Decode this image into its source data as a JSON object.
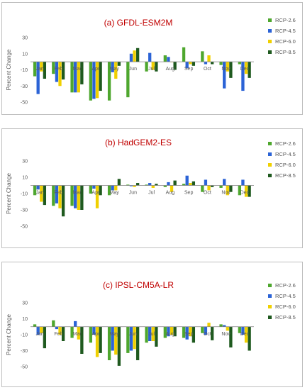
{
  "colors": [
    "#4ea72e",
    "#2b63d6",
    "#f0d000",
    "#1f5a1f"
  ],
  "chart_data": [
    {
      "type": "bar",
      "title": "(a) GFDL-ESM2M",
      "ylabel": "Percent Change",
      "ylim": [
        -50,
        30
      ],
      "yticks": [
        30,
        10,
        -10,
        -30,
        -50
      ],
      "categories": [
        "Jan",
        "Feb",
        "Mar",
        "Apr",
        "May",
        "Jun",
        "Jul",
        "Aug",
        "Sep",
        "Oct",
        "Nov",
        "Dec"
      ],
      "series": [
        {
          "name": "RCP-2.6",
          "values": [
            -18,
            -15,
            -38,
            -48,
            -48,
            -44,
            -12,
            8,
            18,
            13,
            -4,
            -3
          ]
        },
        {
          "name": "RCP-4.5",
          "values": [
            -40,
            -25,
            -38,
            -46,
            -13,
            10,
            11,
            6,
            -8,
            -3,
            -33,
            -36
          ]
        },
        {
          "name": "RCP-6.0",
          "values": [
            -12,
            -30,
            -38,
            -45,
            -21,
            14,
            -10,
            0,
            -3,
            8,
            -12,
            -15
          ]
        },
        {
          "name": "RCP-8.5",
          "values": [
            -21,
            -22,
            -28,
            -36,
            -5,
            17,
            -12,
            -10,
            -5,
            -3,
            -20,
            -20
          ]
        }
      ],
      "legend": "right"
    },
    {
      "type": "bar",
      "title": "(b) HadGEM2-ES",
      "ylabel": "Percent Change",
      "ylim": [
        -50,
        30
      ],
      "yticks": [
        30,
        10,
        -10,
        -30,
        -50
      ],
      "categories": [
        "Jan",
        "Feb",
        "Mar",
        "Apr",
        "May",
        "Jun",
        "Jul",
        "Aug",
        "Sep",
        "Oct",
        "Nov",
        "Dec"
      ],
      "series": [
        {
          "name": "RCP-2.6",
          "values": [
            -12,
            -25,
            -25,
            -10,
            -12,
            1,
            1,
            -2,
            2,
            -8,
            -3,
            -12
          ]
        },
        {
          "name": "RCP-4.5",
          "values": [
            -5,
            -22,
            -28,
            -4,
            -6,
            -1,
            3,
            4,
            12,
            7,
            8,
            7
          ]
        },
        {
          "name": "RCP-6.0",
          "values": [
            -20,
            -28,
            -30,
            -28,
            -6,
            -2,
            -3,
            -8,
            3,
            -6,
            -12,
            -14
          ]
        },
        {
          "name": "RCP-8.5",
          "values": [
            -24,
            -38,
            -30,
            -12,
            8,
            3,
            2,
            6,
            5,
            -2,
            -8,
            -14
          ]
        }
      ],
      "legend": "right"
    },
    {
      "type": "bar",
      "title": "(c) IPSL-CM5A-LR",
      "ylabel": "Percent Change",
      "ylim": [
        -50,
        30
      ],
      "yticks": [
        30,
        10,
        -10,
        -30,
        -50
      ],
      "categories": [
        "Jan",
        "Feb",
        "Mar",
        "Apr",
        "May",
        "Jun",
        "Jul",
        "Aug",
        "Sep",
        "Oct",
        "Nov",
        "Dec"
      ],
      "series": [
        {
          "name": "RCP-2.6",
          "values": [
            3,
            8,
            -14,
            -20,
            -42,
            -33,
            -20,
            -14,
            -14,
            -8,
            3,
            -8
          ]
        },
        {
          "name": "RCP-4.5",
          "values": [
            -10,
            -3,
            7,
            -10,
            -30,
            -30,
            -18,
            -12,
            -16,
            -10,
            2,
            -10
          ]
        },
        {
          "name": "RCP-6.0",
          "values": [
            -8,
            -10,
            -16,
            -38,
            -35,
            -28,
            -18,
            -10,
            -12,
            5,
            -5,
            -20
          ]
        },
        {
          "name": "RCP-8.5",
          "values": [
            -27,
            -18,
            -34,
            -33,
            -49,
            -42,
            -25,
            -12,
            -20,
            -17,
            -26,
            -30
          ]
        }
      ],
      "legend": "right"
    }
  ]
}
